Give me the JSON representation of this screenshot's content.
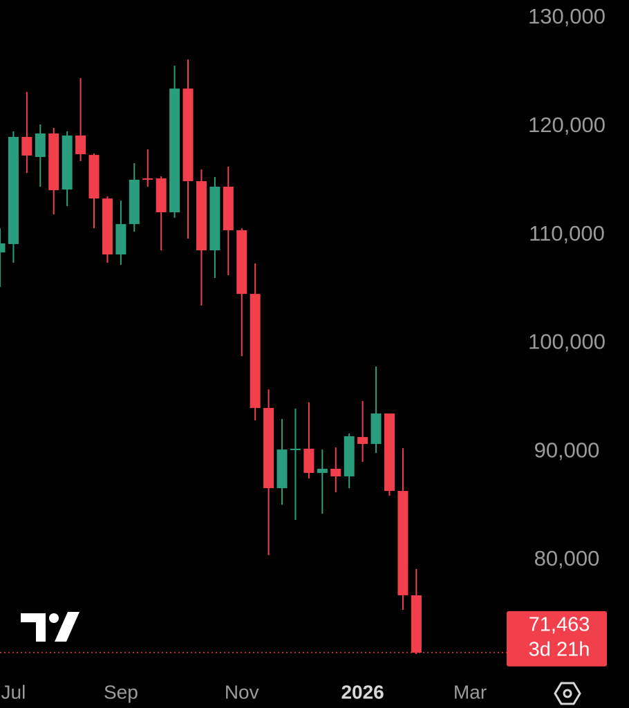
{
  "chart_data": {
    "type": "candlestick",
    "categories": [
      null,
      "Jul",
      null,
      null,
      null,
      null,
      null,
      null,
      null,
      "Sep",
      null,
      null,
      null,
      null,
      null,
      null,
      null,
      null,
      "Nov",
      null,
      null,
      null,
      null,
      null,
      null,
      null,
      null,
      "2026",
      null,
      null,
      null,
      null,
      null,
      null,
      null,
      "Mar"
    ],
    "open": [
      108380,
      109150,
      119030,
      117180,
      119350,
      114180,
      119160,
      117370,
      113350,
      108190,
      110990,
      115210,
      115210,
      112080,
      123490,
      114950,
      108570,
      114440,
      110420,
      104550,
      94030,
      86630,
      90140,
      90270,
      88040,
      88420,
      87720,
      91350,
      90710,
      93520,
      86380,
      76750,
      null,
      null,
      null,
      null
    ],
    "high": [
      110610,
      119540,
      123180,
      120180,
      119860,
      119540,
      124450,
      117500,
      113550,
      113160,
      116610,
      117880,
      115400,
      125600,
      126170,
      116030,
      115330,
      116290,
      110610,
      107360,
      95750,
      93010,
      93970,
      94540,
      90200,
      90390,
      91670,
      94670,
      97860,
      93520,
      90330,
      79170,
      null,
      null,
      null,
      null
    ],
    "low": [
      105190,
      107420,
      115710,
      114440,
      111890,
      112650,
      116800,
      110610,
      107420,
      107230,
      110290,
      114440,
      108570,
      111570,
      109660,
      103470,
      106020,
      106280,
      98810,
      92880,
      80450,
      85100,
      83700,
      87520,
      84270,
      86250,
      86630,
      89060,
      89880,
      85930,
      75410,
      71330,
      null,
      null,
      null,
      null
    ],
    "close": [
      109210,
      119030,
      117310,
      119350,
      114120,
      119160,
      117440,
      113350,
      108190,
      110990,
      115080,
      115080,
      112080,
      123490,
      114950,
      108570,
      114440,
      110420,
      104550,
      94030,
      86630,
      90200,
      90270,
      88040,
      88420,
      87720,
      91420,
      90710,
      93520,
      86380,
      76750,
      71463,
      null,
      null,
      null,
      null
    ],
    "up_color": "#2a9d7f",
    "down_color": "#f23f4c",
    "ylim": [
      69480,
      131660
    ],
    "yticks": [
      {
        "value": 80000,
        "label": "80,000"
      },
      {
        "value": 90000,
        "label": "90,000"
      },
      {
        "value": 100000,
        "label": "100,000"
      },
      {
        "value": 110000,
        "label": "110,000"
      },
      {
        "value": 120000,
        "label": "120,000"
      },
      {
        "value": 130000,
        "label": "130,000"
      }
    ],
    "last_price": {
      "value": 71463,
      "label": "71,463"
    },
    "countdown": "3d 21h"
  }
}
